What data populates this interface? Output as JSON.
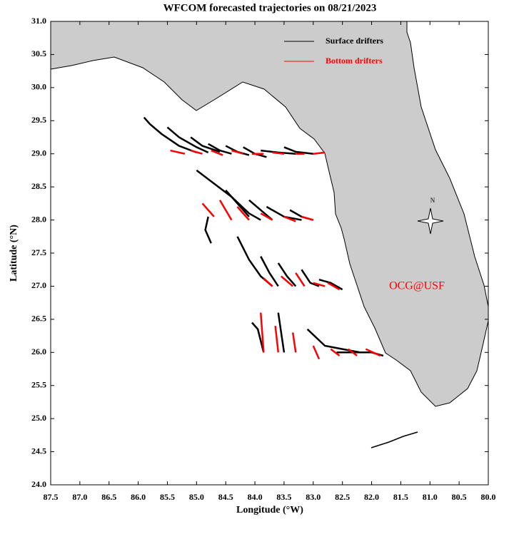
{
  "chart_data": {
    "type": "trajectory-map",
    "title": "WFCOM forecasted trajectories on 08/21/2023",
    "x_label": "Longitude (°W)",
    "y_label": "Latitude (°N)",
    "annotation": "OCG@USF",
    "compass_label": "N",
    "xlim": [
      87.5,
      80.0
    ],
    "ylim": [
      24.0,
      31.0
    ],
    "xticks": [
      87.5,
      {
        "value": 87,
        "label": "87.0"
      },
      86.5,
      {
        "value": 86,
        "label": "86.0"
      },
      85.5,
      {
        "value": 85,
        "label": "85.0"
      },
      84.5,
      {
        "value": 84,
        "label": "84.0"
      },
      83.5,
      {
        "value": 83,
        "label": "83.0"
      },
      82.5,
      {
        "value": 82,
        "label": "82.0"
      },
      81.5,
      {
        "value": 81,
        "label": "81.0"
      },
      80.5,
      {
        "value": 80,
        "label": "80.0"
      }
    ],
    "yticks": [
      {
        "value": 24,
        "label": "24.0"
      },
      24.5,
      {
        "value": 25,
        "label": "25.0"
      },
      25.5,
      {
        "value": 26,
        "label": "26.0"
      },
      26.5,
      {
        "value": 27,
        "label": "27.0"
      },
      27.5,
      {
        "value": 28,
        "label": "28.0"
      },
      28.5,
      {
        "value": 29,
        "label": "29.0"
      },
      29.5,
      {
        "value": 30,
        "label": "30.0"
      },
      30.5,
      {
        "value": 31,
        "label": "31.0"
      }
    ],
    "series": [
      {
        "name": "Surface drifters",
        "color": "#000000",
        "tracks": [
          {
            "lon": [
              85.9,
              85.8,
              85.6,
              85.3,
              85.0
            ],
            "lat": [
              29.55,
              29.45,
              29.3,
              29.12,
              29.02
            ]
          },
          {
            "lon": [
              85.5,
              85.3,
              85.0,
              84.8
            ],
            "lat": [
              29.4,
              29.25,
              29.1,
              29.02
            ]
          },
          {
            "lon": [
              85.1,
              84.9,
              84.6
            ],
            "lat": [
              29.25,
              29.12,
              29.03
            ]
          },
          {
            "lon": [
              84.8,
              84.6,
              84.4
            ],
            "lat": [
              29.15,
              29.05,
              29.0
            ]
          },
          {
            "lon": [
              84.5,
              84.3,
              84.1
            ],
            "lat": [
              29.12,
              29.03,
              28.98
            ]
          },
          {
            "lon": [
              84.2,
              84.0,
              83.8
            ],
            "lat": [
              29.1,
              29.0,
              28.95
            ]
          },
          {
            "lon": [
              83.9,
              83.6,
              83.3
            ],
            "lat": [
              29.05,
              29.02,
              29.0
            ]
          },
          {
            "lon": [
              83.5,
              83.3,
              83.0
            ],
            "lat": [
              29.1,
              29.03,
              29.0
            ]
          },
          {
            "lon": [
              85.0,
              84.7,
              84.4,
              84.1,
              83.9
            ],
            "lat": [
              28.75,
              28.55,
              28.35,
              28.1,
              28.0
            ]
          },
          {
            "lon": [
              84.5,
              84.3,
              84.1
            ],
            "lat": [
              28.45,
              28.25,
              28.05
            ]
          },
          {
            "lon": [
              84.1,
              83.9,
              83.7
            ],
            "lat": [
              28.3,
              28.15,
              28.0
            ]
          },
          {
            "lon": [
              83.8,
              83.5,
              83.2
            ],
            "lat": [
              28.2,
              28.05,
              28.0
            ]
          },
          {
            "lon": [
              83.4,
              83.2,
              83.0
            ],
            "lat": [
              28.15,
              28.05,
              28.0
            ]
          },
          {
            "lon": [
              84.8,
              84.85,
              84.75
            ],
            "lat": [
              28.05,
              27.85,
              27.65
            ]
          },
          {
            "lon": [
              84.3,
              84.1,
              83.9,
              83.7
            ],
            "lat": [
              27.75,
              27.4,
              27.15,
              27.0
            ]
          },
          {
            "lon": [
              83.9,
              83.75,
              83.6
            ],
            "lat": [
              27.45,
              27.2,
              27.0
            ]
          },
          {
            "lon": [
              83.6,
              83.45,
              83.3
            ],
            "lat": [
              27.35,
              27.15,
              27.0
            ]
          },
          {
            "lon": [
              83.2,
              83.05,
              82.9
            ],
            "lat": [
              27.25,
              27.05,
              27.0
            ]
          },
          {
            "lon": [
              82.9,
              82.7,
              82.5
            ],
            "lat": [
              27.1,
              27.05,
              26.95
            ]
          },
          {
            "lon": [
              84.05,
              83.95,
              83.85
            ],
            "lat": [
              26.45,
              26.35,
              26.0
            ]
          },
          {
            "lon": [
              83.6,
              83.55,
              83.5
            ],
            "lat": [
              26.6,
              26.3,
              26.0
            ]
          },
          {
            "lon": [
              83.1,
              82.8,
              82.5,
              82.2
            ],
            "lat": [
              26.35,
              26.1,
              26.05,
              26.0
            ]
          },
          {
            "lon": [
              82.6,
              82.0,
              81.8
            ],
            "lat": [
              26.0,
              26.0,
              25.95
            ]
          }
        ]
      },
      {
        "name": "Bottom drifters",
        "color": "#ff0000",
        "tracks": [
          {
            "lon": [
              85.45,
              85.2
            ],
            "lat": [
              29.05,
              29.0
            ]
          },
          {
            "lon": [
              85.1,
              84.9
            ],
            "lat": [
              29.05,
              29.0
            ]
          },
          {
            "lon": [
              84.75,
              84.55
            ],
            "lat": [
              29.05,
              28.98
            ]
          },
          {
            "lon": [
              84.4,
              84.2
            ],
            "lat": [
              29.05,
              29.0
            ]
          },
          {
            "lon": [
              84.05,
              83.85
            ],
            "lat": [
              29.0,
              29.0
            ]
          },
          {
            "lon": [
              83.7,
              83.5
            ],
            "lat": [
              29.02,
              29.0
            ]
          },
          {
            "lon": [
              83.3,
              83.15
            ],
            "lat": [
              29.0,
              29.0
            ]
          },
          {
            "lon": [
              83.0,
              82.8
            ],
            "lat": [
              29.0,
              29.02
            ]
          },
          {
            "lon": [
              84.9,
              84.7
            ],
            "lat": [
              28.25,
              28.05
            ]
          },
          {
            "lon": [
              84.6,
              84.4
            ],
            "lat": [
              28.3,
              28.0
            ]
          },
          {
            "lon": [
              84.3,
              84.1
            ],
            "lat": [
              28.2,
              28.0
            ]
          },
          {
            "lon": [
              83.9,
              83.7
            ],
            "lat": [
              28.1,
              28.0
            ]
          },
          {
            "lon": [
              83.5,
              83.3
            ],
            "lat": [
              28.05,
              27.98
            ]
          },
          {
            "lon": [
              83.2,
              83.0
            ],
            "lat": [
              28.05,
              28.0
            ]
          },
          {
            "lon": [
              83.85,
              83.7
            ],
            "lat": [
              27.12,
              27.0
            ]
          },
          {
            "lon": [
              83.55,
              83.35
            ],
            "lat": [
              27.15,
              27.0
            ]
          },
          {
            "lon": [
              83.3,
              83.15
            ],
            "lat": [
              27.2,
              27.0
            ]
          },
          {
            "lon": [
              83.0,
              82.8
            ],
            "lat": [
              27.05,
              27.0
            ]
          },
          {
            "lon": [
              82.75,
              82.55
            ],
            "lat": [
              27.05,
              26.95
            ]
          },
          {
            "lon": [
              83.9,
              83.85
            ],
            "lat": [
              26.6,
              26.0
            ]
          },
          {
            "lon": [
              83.65,
              83.6
            ],
            "lat": [
              26.4,
              26.0
            ]
          },
          {
            "lon": [
              83.35,
              83.3
            ],
            "lat": [
              26.3,
              26.0
            ]
          },
          {
            "lon": [
              83.0,
              82.9
            ],
            "lat": [
              26.1,
              25.9
            ]
          },
          {
            "lon": [
              82.7,
              82.55
            ],
            "lat": [
              26.05,
              25.95
            ]
          },
          {
            "lon": [
              82.4,
              82.25
            ],
            "lat": [
              26.05,
              25.95
            ]
          },
          {
            "lon": [
              82.1,
              81.85
            ],
            "lat": [
              26.05,
              25.95
            ]
          }
        ]
      }
    ]
  }
}
